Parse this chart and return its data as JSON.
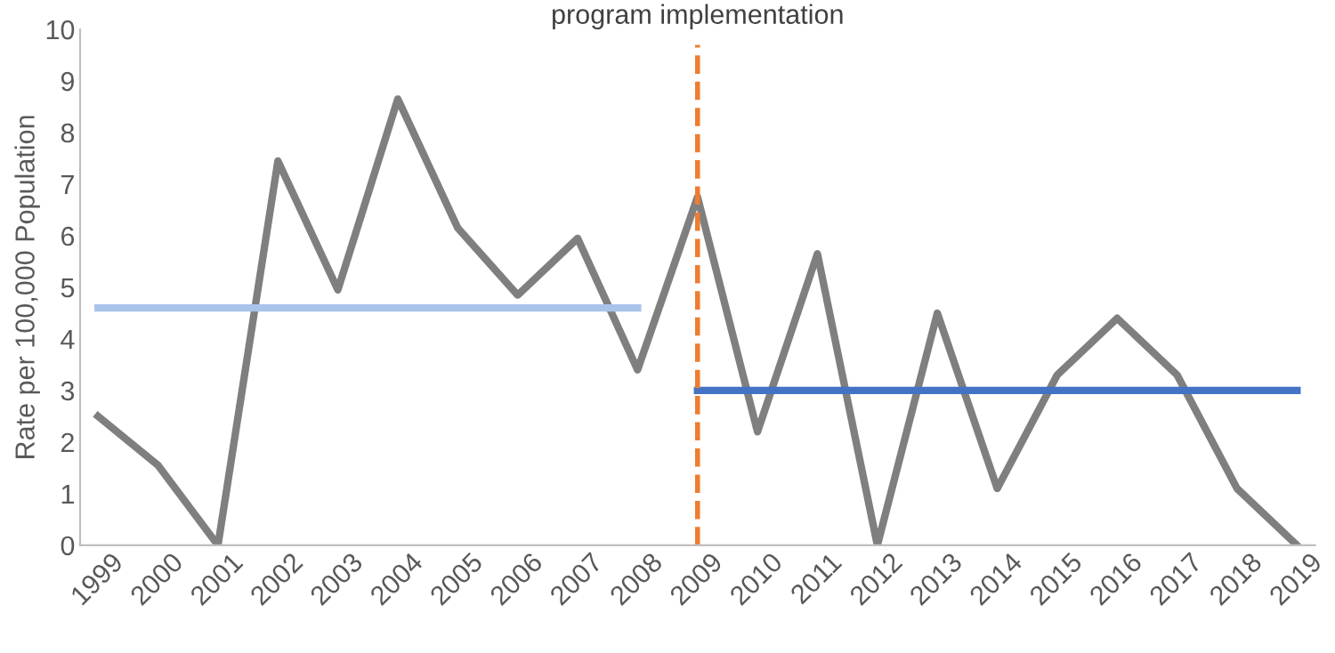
{
  "chart_data": {
    "type": "line",
    "ylabel": "Rate per 100,000 Population",
    "x": [
      1999,
      2000,
      2001,
      2002,
      2003,
      2004,
      2005,
      2006,
      2007,
      2008,
      2009,
      2010,
      2011,
      2012,
      2013,
      2014,
      2015,
      2016,
      2017,
      2018,
      2019
    ],
    "series": [
      {
        "color": "#7f7f7f",
        "values": [
          2.5,
          1.55,
          0,
          7.45,
          4.95,
          8.65,
          6.15,
          4.85,
          5.95,
          3.4,
          6.75,
          2.2,
          5.65,
          0,
          4.5,
          1.1,
          3.3,
          4.4,
          3.3,
          1.1,
          0
        ]
      },
      {
        "color": "#a9c4eb",
        "x": [
          1999,
          2008
        ],
        "values": [
          4.6,
          4.6
        ]
      },
      {
        "color": "#4472c4",
        "x": [
          2009,
          2019
        ],
        "values": [
          3.0,
          3.0
        ]
      }
    ],
    "ref_lines": [
      {
        "axis": "x",
        "value": 2009,
        "label": "program implementation",
        "color": "#ed7d31",
        "line_style": "dashed"
      }
    ],
    "xlim": [
      1998.7,
      2019.3
    ],
    "xticks": [
      1999,
      2000,
      2001,
      2002,
      2003,
      2004,
      2005,
      2006,
      2007,
      2008,
      2009,
      2010,
      2011,
      2012,
      2013,
      2014,
      2015,
      2016,
      2017,
      2018,
      2019
    ],
    "ylim": [
      0,
      10
    ],
    "yticks": [
      0,
      1,
      2,
      3,
      4,
      5,
      6,
      7,
      8,
      9,
      10
    ],
    "grid": false,
    "legend": false,
    "marker": "none",
    "line_style": "solid"
  }
}
